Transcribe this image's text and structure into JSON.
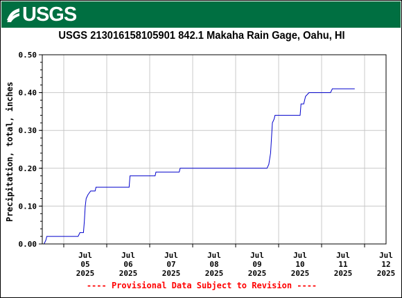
{
  "header": {
    "logo_text": "USGS",
    "banner_color": "#006f41"
  },
  "chart_data": {
    "type": "line",
    "title": "USGS 213016158105901 842.1 Makaha Rain Gage, Oahu, HI",
    "ylabel": "Precipitation, total, inches",
    "xlabel": "",
    "ylim": [
      0,
      0.5
    ],
    "xlim": [
      "2025-07-04T12:00",
      "2025-07-12T12:00"
    ],
    "y_ticks": [
      "0.00",
      "0.10",
      "0.20",
      "0.30",
      "0.40",
      "0.50"
    ],
    "x_ticks": [
      {
        "line1": "Jul",
        "line2": "05",
        "line3": "2025"
      },
      {
        "line1": "Jul",
        "line2": "06",
        "line3": "2025"
      },
      {
        "line1": "Jul",
        "line2": "07",
        "line3": "2025"
      },
      {
        "line1": "Jul",
        "line2": "08",
        "line3": "2025"
      },
      {
        "line1": "Jul",
        "line2": "09",
        "line3": "2025"
      },
      {
        "line1": "Jul",
        "line2": "10",
        "line3": "2025"
      },
      {
        "line1": "Jul",
        "line2": "11",
        "line3": "2025"
      },
      {
        "line1": "Jul",
        "line2": "12",
        "line3": "2025"
      }
    ],
    "grid": true,
    "series": [
      {
        "color": "#0000cc",
        "points": [
          [
            "2025-07-04T12:00",
            0.0
          ],
          [
            "2025-07-04T13:00",
            0.0
          ],
          [
            "2025-07-04T14:00",
            0.01
          ],
          [
            "2025-07-04T14:30",
            0.02
          ],
          [
            "2025-07-05T08:00",
            0.02
          ],
          [
            "2025-07-05T09:00",
            0.03
          ],
          [
            "2025-07-05T11:00",
            0.03
          ],
          [
            "2025-07-05T11:30",
            0.06
          ],
          [
            "2025-07-05T12:00",
            0.1
          ],
          [
            "2025-07-05T12:30",
            0.12
          ],
          [
            "2025-07-05T13:30",
            0.13
          ],
          [
            "2025-07-05T15:00",
            0.14
          ],
          [
            "2025-07-05T17:30",
            0.14
          ],
          [
            "2025-07-05T18:00",
            0.15
          ],
          [
            "2025-07-06T12:30",
            0.15
          ],
          [
            "2025-07-06T13:00",
            0.18
          ],
          [
            "2025-07-07T03:00",
            0.18
          ],
          [
            "2025-07-07T03:30",
            0.19
          ],
          [
            "2025-07-07T16:30",
            0.19
          ],
          [
            "2025-07-07T17:00",
            0.2
          ],
          [
            "2025-07-09T17:30",
            0.2
          ],
          [
            "2025-07-09T18:30",
            0.21
          ],
          [
            "2025-07-09T19:30",
            0.24
          ],
          [
            "2025-07-09T20:00",
            0.28
          ],
          [
            "2025-07-09T20:30",
            0.32
          ],
          [
            "2025-07-09T21:30",
            0.33
          ],
          [
            "2025-07-09T22:00",
            0.34
          ],
          [
            "2025-07-10T12:00",
            0.34
          ],
          [
            "2025-07-10T12:30",
            0.37
          ],
          [
            "2025-07-10T14:00",
            0.37
          ],
          [
            "2025-07-10T15:00",
            0.39
          ],
          [
            "2025-07-10T17:00",
            0.4
          ],
          [
            "2025-07-11T05:00",
            0.4
          ],
          [
            "2025-07-11T06:00",
            0.41
          ],
          [
            "2025-07-11T18:30",
            0.41
          ]
        ]
      }
    ]
  },
  "footer": {
    "disclaimer": "---- Provisional Data Subject to Revision ----",
    "disclaimer_color": "#ff0000"
  }
}
